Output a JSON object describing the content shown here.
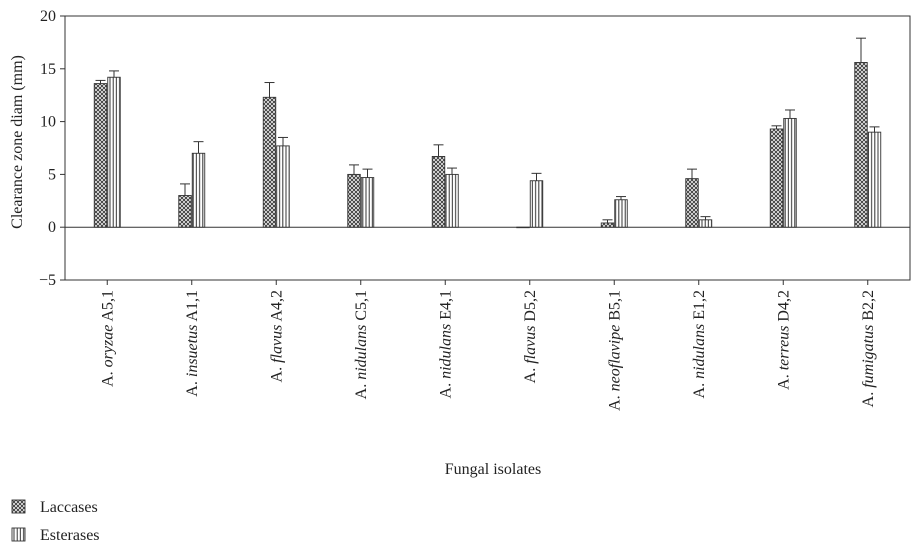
{
  "chart_data": {
    "type": "bar",
    "ylabel": "Clearance zone diam (mm)",
    "xlabel": "Fungal isolates",
    "ylim": [
      -5,
      20
    ],
    "yticks": [
      -5,
      0,
      5,
      10,
      15,
      20
    ],
    "yticklabels": [
      "−5",
      "0",
      "5",
      "10",
      "15",
      "20"
    ],
    "grid": false,
    "legend_position": "bottom-left",
    "categories": [
      {
        "genus": "A.",
        "species": "oryzae",
        "code": "A5,1"
      },
      {
        "genus": "A.",
        "species": "insuetus",
        "code": "A1,1"
      },
      {
        "genus": "A.",
        "species": "flavus",
        "code": "A4,2"
      },
      {
        "genus": "A.",
        "species": "nidulans",
        "code": "C5,1"
      },
      {
        "genus": "A.",
        "species": "nidulans",
        "code": "E4,1"
      },
      {
        "genus": "A.",
        "species": "flavus",
        "code": "D5,2"
      },
      {
        "genus": "A.",
        "species": "neoflavipe",
        "code": "B5,1"
      },
      {
        "genus": "A.",
        "species": "nidulans",
        "code": "E1,2"
      },
      {
        "genus": "A.",
        "species": "terreus",
        "code": "D4,2"
      },
      {
        "genus": "A.",
        "species": "fumigatus",
        "code": "B2,2"
      }
    ],
    "series": [
      {
        "name": "Laccases",
        "pattern": "crosshatch",
        "values": [
          13.6,
          3.0,
          12.3,
          5.0,
          6.7,
          0.0,
          0.4,
          4.6,
          9.3,
          15.6
        ],
        "errors": [
          0.3,
          1.1,
          1.4,
          0.9,
          1.1,
          0.0,
          0.3,
          0.9,
          0.3,
          2.3
        ]
      },
      {
        "name": "Esterases",
        "pattern": "vertical",
        "values": [
          14.2,
          7.0,
          7.7,
          4.7,
          5.0,
          4.4,
          2.6,
          0.7,
          10.3,
          9.0
        ],
        "errors": [
          0.6,
          1.1,
          0.8,
          0.8,
          0.6,
          0.7,
          0.3,
          0.3,
          0.8,
          0.5
        ]
      }
    ]
  }
}
